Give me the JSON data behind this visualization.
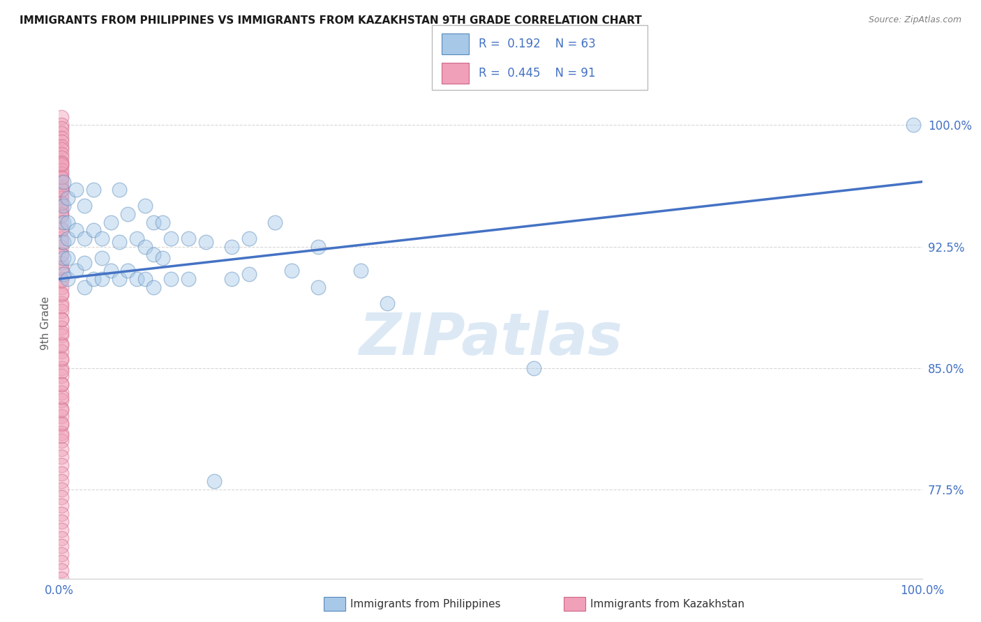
{
  "title": "IMMIGRANTS FROM PHILIPPINES VS IMMIGRANTS FROM KAZAKHSTAN 9TH GRADE CORRELATION CHART",
  "source": "Source: ZipAtlas.com",
  "ylabel": "9th Grade",
  "xlim": [
    0.0,
    1.0
  ],
  "ylim": [
    0.72,
    1.035
  ],
  "x_tick_labels": [
    "0.0%",
    "100.0%"
  ],
  "x_tick_positions": [
    0.0,
    1.0
  ],
  "y_tick_labels": [
    "77.5%",
    "85.0%",
    "92.5%",
    "100.0%"
  ],
  "y_tick_positions": [
    0.775,
    0.85,
    0.925,
    1.0
  ],
  "blue_color": "#a8c8e8",
  "blue_edge_color": "#5588bb",
  "pink_color": "#f0a0b8",
  "pink_edge_color": "#cc6688",
  "line_color": "#4472c4",
  "title_color": "#1a1a1a",
  "source_color": "#808080",
  "axis_label_color": "#606060",
  "tick_label_color": "#4472c4",
  "watermark_color": "#dce9f5",
  "background_color": "#ffffff",
  "grid_color": "#cccccc",
  "legend_text_color": "#4472c4",
  "legend_black_color": "#333333",
  "blue_scatter_x": [
    0.005,
    0.005,
    0.005,
    0.005,
    0.005,
    0.005,
    0.01,
    0.01,
    0.01,
    0.01,
    0.01,
    0.02,
    0.02,
    0.02,
    0.03,
    0.03,
    0.03,
    0.03,
    0.04,
    0.04,
    0.04,
    0.05,
    0.05,
    0.05,
    0.06,
    0.06,
    0.07,
    0.07,
    0.07,
    0.08,
    0.08,
    0.09,
    0.09,
    0.1,
    0.1,
    0.1,
    0.11,
    0.11,
    0.11,
    0.12,
    0.12,
    0.13,
    0.13,
    0.15,
    0.15,
    0.17,
    0.18,
    0.2,
    0.2,
    0.22,
    0.22,
    0.25,
    0.27,
    0.3,
    0.3,
    0.35,
    0.38,
    0.55,
    0.99
  ],
  "blue_scatter_y": [
    0.965,
    0.95,
    0.94,
    0.928,
    0.918,
    0.908,
    0.955,
    0.94,
    0.93,
    0.918,
    0.905,
    0.96,
    0.935,
    0.91,
    0.95,
    0.93,
    0.915,
    0.9,
    0.96,
    0.935,
    0.905,
    0.93,
    0.918,
    0.905,
    0.94,
    0.91,
    0.96,
    0.928,
    0.905,
    0.945,
    0.91,
    0.93,
    0.905,
    0.95,
    0.925,
    0.905,
    0.94,
    0.92,
    0.9,
    0.94,
    0.918,
    0.93,
    0.905,
    0.93,
    0.905,
    0.928,
    0.78,
    0.925,
    0.905,
    0.93,
    0.908,
    0.94,
    0.91,
    0.925,
    0.9,
    0.91,
    0.89,
    0.85,
    1.0
  ],
  "pink_scatter_x": [
    0.003,
    0.003,
    0.003,
    0.003,
    0.003,
    0.003,
    0.003,
    0.003,
    0.003,
    0.003,
    0.003,
    0.003,
    0.003,
    0.003,
    0.003,
    0.003,
    0.003,
    0.003,
    0.003,
    0.003,
    0.003,
    0.003,
    0.003,
    0.003,
    0.003,
    0.003,
    0.003,
    0.003,
    0.003,
    0.003,
    0.003,
    0.003,
    0.003,
    0.003,
    0.003,
    0.003,
    0.003,
    0.003,
    0.003,
    0.003,
    0.003,
    0.003,
    0.003,
    0.003,
    0.003,
    0.003,
    0.003,
    0.003,
    0.003,
    0.003,
    0.003,
    0.003,
    0.003,
    0.003,
    0.003,
    0.003,
    0.003,
    0.003,
    0.003,
    0.003,
    0.003,
    0.003,
    0.003,
    0.003,
    0.003,
    0.003,
    0.003,
    0.003,
    0.003,
    0.003,
    0.003,
    0.003,
    0.003,
    0.003,
    0.003,
    0.003,
    0.003,
    0.003,
    0.003,
    0.003,
    0.003,
    0.003,
    0.003,
    0.003,
    0.003,
    0.003,
    0.003,
    0.003,
    0.003,
    0.003,
    0.003
  ],
  "pink_scatter_y": [
    1.005,
    1.0,
    0.998,
    0.995,
    0.992,
    0.99,
    0.987,
    0.985,
    0.982,
    0.98,
    0.977,
    0.975,
    0.972,
    0.97,
    0.967,
    0.965,
    0.962,
    0.96,
    0.957,
    0.955,
    0.952,
    0.95,
    0.947,
    0.945,
    0.94,
    0.935,
    0.93,
    0.925,
    0.92,
    0.915,
    0.91,
    0.905,
    0.9,
    0.895,
    0.89,
    0.885,
    0.88,
    0.875,
    0.87,
    0.865,
    0.86,
    0.855,
    0.85,
    0.845,
    0.84,
    0.835,
    0.83,
    0.825,
    0.82,
    0.815,
    0.81,
    0.805,
    0.8,
    0.795,
    0.79,
    0.785,
    0.78,
    0.775,
    0.77,
    0.765,
    0.76,
    0.755,
    0.75,
    0.745,
    0.74,
    0.735,
    0.73,
    0.725,
    0.72,
    0.808,
    0.816,
    0.824,
    0.832,
    0.84,
    0.848,
    0.856,
    0.864,
    0.872,
    0.88,
    0.888,
    0.896,
    0.904,
    0.912,
    0.92,
    0.928,
    0.936,
    0.944,
    0.952,
    0.96,
    0.968,
    0.976
  ],
  "trend_x": [
    0.0,
    1.0
  ],
  "trend_y_start": 0.905,
  "trend_y_end": 0.965,
  "scatter_size": 220,
  "scatter_alpha": 0.45,
  "scatter_linewidth": 1.0
}
